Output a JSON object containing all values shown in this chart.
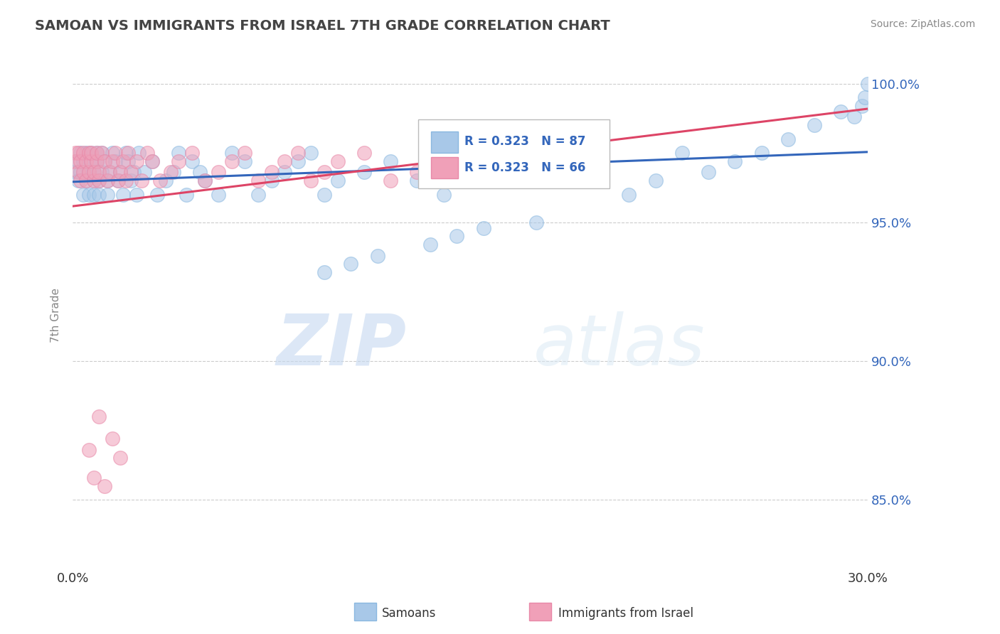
{
  "title": "SAMOAN VS IMMIGRANTS FROM ISRAEL 7TH GRADE CORRELATION CHART",
  "source": "Source: ZipAtlas.com",
  "ylabel": "7th Grade",
  "ytick_vals": [
    0.85,
    0.9,
    0.95,
    1.0
  ],
  "ytick_labels": [
    "85.0%",
    "90.0%",
    "95.0%",
    "100.0%"
  ],
  "xlim": [
    0.0,
    0.3
  ],
  "ylim": [
    0.825,
    1.008
  ],
  "blue_color": "#a8c8e8",
  "pink_color": "#f0a0b8",
  "blue_line_color": "#3366bb",
  "pink_line_color": "#dd4466",
  "legend_r1": "R = 0.323",
  "legend_n1": "N = 87",
  "legend_r2": "R = 0.323",
  "legend_n2": "N = 66",
  "watermark_zip": "ZIP",
  "watermark_atlas": "atlas",
  "blue_x": [
    0.001,
    0.002,
    0.002,
    0.003,
    0.003,
    0.004,
    0.004,
    0.005,
    0.005,
    0.006,
    0.006,
    0.007,
    0.007,
    0.008,
    0.008,
    0.008,
    0.009,
    0.009,
    0.01,
    0.01,
    0.011,
    0.011,
    0.012,
    0.013,
    0.013,
    0.014,
    0.015,
    0.016,
    0.017,
    0.018,
    0.019,
    0.02,
    0.021,
    0.022,
    0.023,
    0.024,
    0.025,
    0.027,
    0.03,
    0.032,
    0.035,
    0.038,
    0.04,
    0.043,
    0.045,
    0.048,
    0.05,
    0.055,
    0.06,
    0.065,
    0.07,
    0.075,
    0.08,
    0.085,
    0.09,
    0.095,
    0.1,
    0.11,
    0.12,
    0.13,
    0.14,
    0.15,
    0.16,
    0.17,
    0.18,
    0.19,
    0.2,
    0.21,
    0.22,
    0.23,
    0.24,
    0.25,
    0.26,
    0.27,
    0.28,
    0.29,
    0.295,
    0.298,
    0.299,
    0.3,
    0.175,
    0.155,
    0.145,
    0.135,
    0.115,
    0.105,
    0.095
  ],
  "blue_y": [
    0.968,
    0.972,
    0.965,
    0.975,
    0.968,
    0.972,
    0.96,
    0.965,
    0.975,
    0.968,
    0.96,
    0.972,
    0.975,
    0.965,
    0.968,
    0.96,
    0.975,
    0.972,
    0.965,
    0.96,
    0.968,
    0.975,
    0.972,
    0.965,
    0.96,
    0.968,
    0.975,
    0.972,
    0.965,
    0.968,
    0.96,
    0.975,
    0.972,
    0.965,
    0.968,
    0.96,
    0.975,
    0.968,
    0.972,
    0.96,
    0.965,
    0.968,
    0.975,
    0.96,
    0.972,
    0.968,
    0.965,
    0.96,
    0.975,
    0.972,
    0.96,
    0.965,
    0.968,
    0.972,
    0.975,
    0.96,
    0.965,
    0.968,
    0.972,
    0.965,
    0.96,
    0.968,
    0.972,
    0.965,
    0.975,
    0.968,
    0.972,
    0.96,
    0.965,
    0.975,
    0.968,
    0.972,
    0.975,
    0.98,
    0.985,
    0.99,
    0.988,
    0.992,
    0.995,
    1.0,
    0.95,
    0.948,
    0.945,
    0.942,
    0.938,
    0.935,
    0.932
  ],
  "pink_x": [
    0.001,
    0.001,
    0.002,
    0.002,
    0.003,
    0.003,
    0.004,
    0.004,
    0.005,
    0.005,
    0.006,
    0.006,
    0.007,
    0.007,
    0.008,
    0.008,
    0.009,
    0.009,
    0.01,
    0.01,
    0.011,
    0.012,
    0.013,
    0.014,
    0.015,
    0.016,
    0.017,
    0.018,
    0.019,
    0.02,
    0.021,
    0.022,
    0.024,
    0.026,
    0.028,
    0.03,
    0.033,
    0.037,
    0.04,
    0.045,
    0.05,
    0.055,
    0.06,
    0.065,
    0.07,
    0.075,
    0.08,
    0.085,
    0.09,
    0.095,
    0.1,
    0.11,
    0.12,
    0.13,
    0.14,
    0.15,
    0.16,
    0.17,
    0.18,
    0.19,
    0.01,
    0.015,
    0.018,
    0.008,
    0.012,
    0.006
  ],
  "pink_y": [
    0.975,
    0.972,
    0.968,
    0.975,
    0.972,
    0.965,
    0.975,
    0.968,
    0.972,
    0.965,
    0.975,
    0.968,
    0.972,
    0.975,
    0.965,
    0.968,
    0.972,
    0.975,
    0.965,
    0.968,
    0.975,
    0.972,
    0.965,
    0.968,
    0.972,
    0.975,
    0.965,
    0.968,
    0.972,
    0.965,
    0.975,
    0.968,
    0.972,
    0.965,
    0.975,
    0.972,
    0.965,
    0.968,
    0.972,
    0.975,
    0.965,
    0.968,
    0.972,
    0.975,
    0.965,
    0.968,
    0.972,
    0.975,
    0.965,
    0.968,
    0.972,
    0.975,
    0.965,
    0.968,
    0.972,
    0.975,
    0.965,
    0.968,
    0.972,
    0.975,
    0.88,
    0.872,
    0.865,
    0.858,
    0.855,
    0.868
  ]
}
